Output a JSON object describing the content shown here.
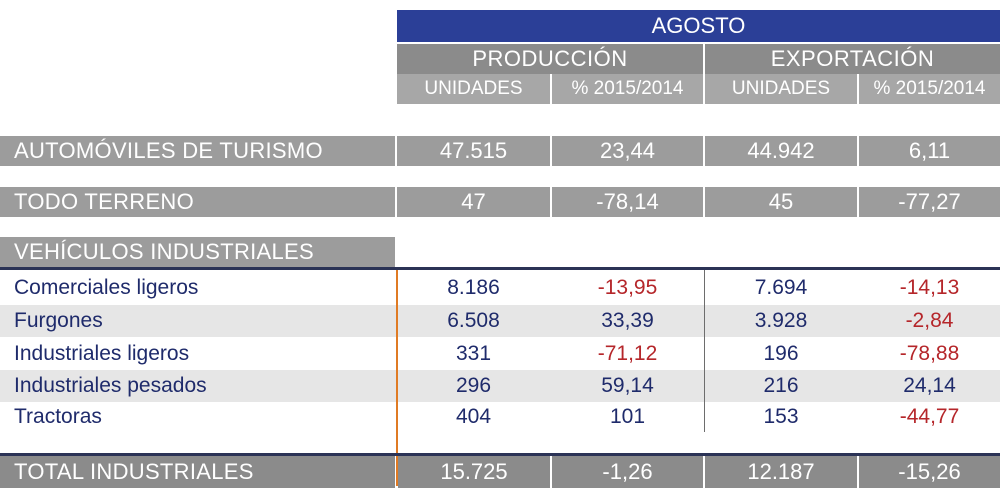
{
  "header": {
    "month": "AGOSTO",
    "production": "PRODUCCIÓN",
    "export": "EXPORTACIÓN",
    "col_units": "UNIDADES",
    "col_pct": "% 2015/2014"
  },
  "rows_main": [
    {
      "label": "AUTOMÓVILES DE TURISMO",
      "prod_units": "47.515",
      "prod_pct": "23,44",
      "exp_units": "44.942",
      "exp_pct": "6,11"
    },
    {
      "label": "TODO TERRENO",
      "prod_units": "47",
      "prod_pct": "-78,14",
      "exp_units": "45",
      "exp_pct": "-77,27"
    }
  ],
  "industrial_section_label": "VEHÍCULOS INDUSTRIALES",
  "industrial_rows": [
    {
      "label": "Comerciales ligeros",
      "prod_units": "8.186",
      "prod_pct": "-13,95",
      "exp_units": "7.694",
      "exp_pct": "-14,13"
    },
    {
      "label": "Furgones",
      "prod_units": "6.508",
      "prod_pct": "33,39",
      "exp_units": "3.928",
      "exp_pct": "-2,84"
    },
    {
      "label": "Industriales ligeros",
      "prod_units": "331",
      "prod_pct": "-71,12",
      "exp_units": "196",
      "exp_pct": "-78,88"
    },
    {
      "label": "Industriales pesados",
      "prod_units": "296",
      "prod_pct": "59,14",
      "exp_units": "216",
      "exp_pct": "24,14"
    },
    {
      "label": "Tractoras",
      "prod_units": "404",
      "prod_pct": "101",
      "exp_units": "153",
      "exp_pct": "-44,77"
    }
  ],
  "total": {
    "label": "TOTAL INDUSTRIALES",
    "prod_units": "15.725",
    "prod_pct": "-1,26",
    "exp_units": "12.187",
    "exp_pct": "-15,26"
  },
  "colors": {
    "header_blue": "#2b3f97",
    "header_grey": "#8b8b8b",
    "row_text": "#1f2b6b",
    "negative_text": "#b5262a",
    "accent_orange": "#e07b24",
    "band_grey": "#e6e6e6"
  }
}
